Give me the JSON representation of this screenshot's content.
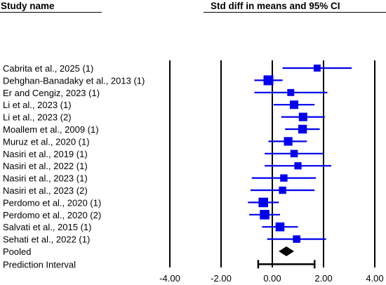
{
  "chart_data": {
    "type": "forest",
    "column_headers": {
      "left": "Study name",
      "right": "Std diff in means and 95% CI"
    },
    "xlim": [
      -4,
      4
    ],
    "xticks": [
      -4,
      -2,
      0,
      2,
      4
    ],
    "xtick_labels": [
      "-4.00",
      "-2.00",
      "0.00",
      "2.00",
      "4.00"
    ],
    "reference_lines": [
      -4,
      -2,
      0,
      2,
      4
    ],
    "studies": [
      {
        "label": "Cabrita et al., 2025 (1)",
        "estimate": 1.75,
        "lower": 0.4,
        "upper": 3.1,
        "weight": 0.55
      },
      {
        "label": "Dehghan-Banadaky et al., 2013 (1)",
        "estimate": -0.15,
        "lower": -0.7,
        "upper": 0.4,
        "weight": 1.0
      },
      {
        "label": "Er and Cengiz, 2023 (1)",
        "estimate": 0.72,
        "lower": -0.7,
        "upper": 2.15,
        "weight": 0.55
      },
      {
        "label": "Li et al., 2023 (1)",
        "estimate": 0.85,
        "lower": 0.05,
        "upper": 1.65,
        "weight": 0.78
      },
      {
        "label": "Li et al., 2023 (2)",
        "estimate": 1.2,
        "lower": 0.35,
        "upper": 2.05,
        "weight": 0.78
      },
      {
        "label": "Moallem et al., 2009 (1)",
        "estimate": 1.18,
        "lower": 0.5,
        "upper": 1.85,
        "weight": 0.82
      },
      {
        "label": "Muruz et al., 2020 (1)",
        "estimate": 0.62,
        "lower": -0.15,
        "upper": 1.35,
        "weight": 0.8
      },
      {
        "label": "Nasiri et al., 2019 (1)",
        "estimate": 0.85,
        "lower": -0.3,
        "upper": 2.0,
        "weight": 0.62
      },
      {
        "label": "Nasiri et al., 2022 (1)",
        "estimate": 1.0,
        "lower": -0.3,
        "upper": 2.3,
        "weight": 0.58
      },
      {
        "label": "Nasiri et al., 2023 (1)",
        "estimate": 0.45,
        "lower": -0.8,
        "upper": 1.7,
        "weight": 0.6
      },
      {
        "label": "Nasiri et al., 2023 (2)",
        "estimate": 0.4,
        "lower": -0.85,
        "upper": 1.65,
        "weight": 0.6
      },
      {
        "label": "Perdomo et al., 2020 (1)",
        "estimate": -0.35,
        "lower": -0.95,
        "upper": 0.25,
        "weight": 0.95
      },
      {
        "label": "Perdomo et al., 2020 (2)",
        "estimate": -0.3,
        "lower": -0.9,
        "upper": 0.3,
        "weight": 0.95
      },
      {
        "label": "Salvati et al., 2015 (1)",
        "estimate": 0.3,
        "lower": -0.4,
        "upper": 1.0,
        "weight": 0.85
      },
      {
        "label": "Sehati et al., 2022 (1)",
        "estimate": 0.95,
        "lower": -0.2,
        "upper": 2.1,
        "weight": 0.62
      }
    ],
    "pooled": {
      "label": "Pooled",
      "estimate": 0.55,
      "lower": 0.25,
      "upper": 0.85
    },
    "prediction_interval": {
      "label": "Prediction Interval",
      "lower": -0.55,
      "upper": 1.65
    },
    "colors": {
      "study": "#0000ee",
      "pooled": "#000000",
      "grid": "#000000"
    }
  }
}
